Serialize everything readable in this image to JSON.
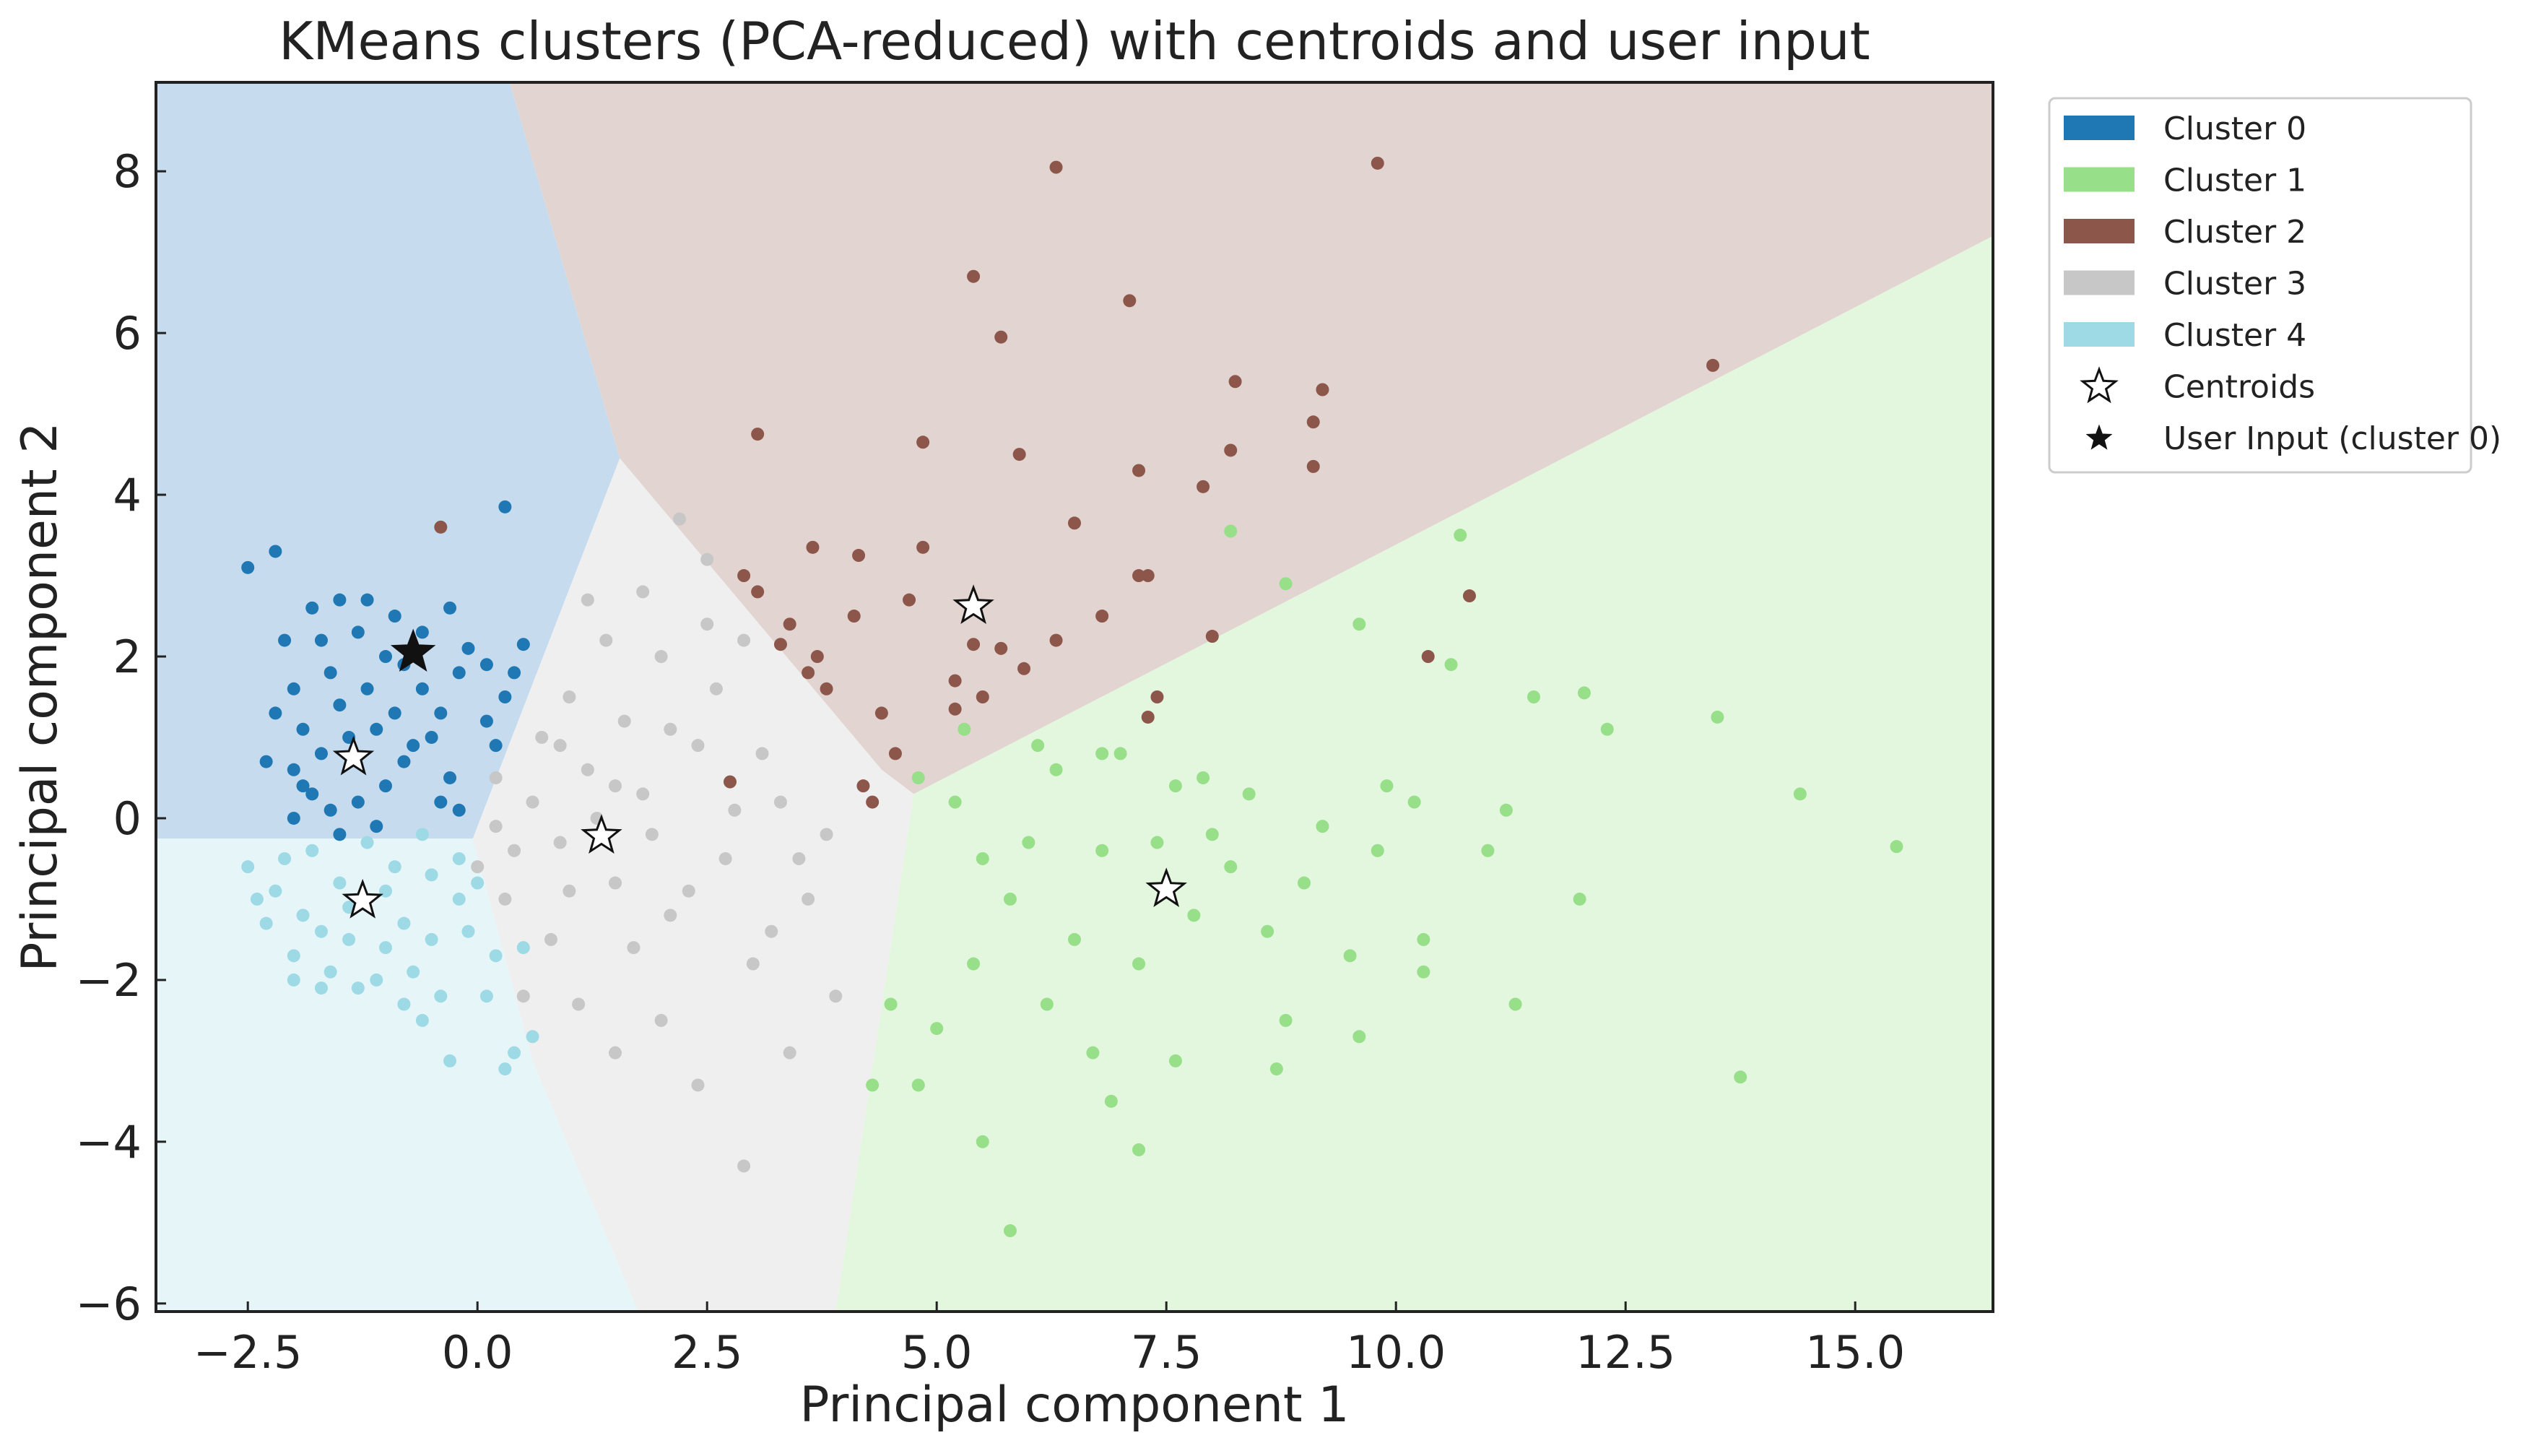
{
  "chart_data": {
    "type": "scatter",
    "title": "KMeans clusters (PCA-reduced) with centroids and user input",
    "xlabel": "Principal component 1",
    "ylabel": "Principal component 2",
    "xlim": [
      -3.5,
      16.5
    ],
    "ylim": [
      -6.1,
      9.1
    ],
    "xticks": [
      -2.5,
      0.0,
      2.5,
      5.0,
      7.5,
      10.0,
      12.5,
      15.0
    ],
    "xtick_labels": [
      "−2.5",
      "0.0",
      "2.5",
      "5.0",
      "7.5",
      "10.0",
      "12.5",
      "15.0"
    ],
    "yticks": [
      -6,
      -4,
      -2,
      0,
      2,
      4,
      6,
      8
    ],
    "ytick_labels": [
      "−6",
      "−4",
      "−2",
      "0",
      "2",
      "4",
      "6",
      "8"
    ],
    "grid": false,
    "legend_position": "outside-top-right",
    "colors": {
      "cluster0": "#1f77b4",
      "cluster1": "#98df8a",
      "cluster2": "#8c564b",
      "cluster3": "#c7c7c7",
      "cluster4": "#9edae5"
    },
    "region_colors": {
      "cluster0": "#c6dcee",
      "cluster1": "#e3f6de",
      "cluster2": "#e2d4d0",
      "cluster3": "#efefef",
      "cluster4": "#e5f5f8"
    },
    "legend": [
      {
        "label": "Cluster 0",
        "kind": "patch",
        "color": "#1f77b4"
      },
      {
        "label": "Cluster 1",
        "kind": "patch",
        "color": "#98df8a"
      },
      {
        "label": "Cluster 2",
        "kind": "patch",
        "color": "#8c564b"
      },
      {
        "label": "Cluster 3",
        "kind": "patch",
        "color": "#c7c7c7"
      },
      {
        "label": "Cluster 4",
        "kind": "patch",
        "color": "#9edae5"
      },
      {
        "label": "Centroids",
        "kind": "open-star"
      },
      {
        "label": "User Input (cluster 0)",
        "kind": "filled-star"
      }
    ],
    "centroids": [
      {
        "cluster": 0,
        "x": -1.35,
        "y": 0.75
      },
      {
        "cluster": 1,
        "x": 7.5,
        "y": -0.88
      },
      {
        "cluster": 2,
        "x": 5.4,
        "y": 2.62
      },
      {
        "cluster": 3,
        "x": 1.35,
        "y": -0.22
      },
      {
        "cluster": 4,
        "x": -1.25,
        "y": -1.02
      }
    ],
    "user_input": {
      "x": -0.7,
      "y": 2.05,
      "cluster": 0
    },
    "series": [
      {
        "name": "Cluster 0",
        "points": [
          [
            -2.5,
            3.1
          ],
          [
            -2.2,
            3.3
          ],
          [
            -1.8,
            2.6
          ],
          [
            -1.5,
            2.7
          ],
          [
            -1.2,
            2.7
          ],
          [
            -0.9,
            2.5
          ],
          [
            -0.6,
            2.3
          ],
          [
            -0.3,
            2.6
          ],
          [
            0.3,
            3.85
          ],
          [
            -0.1,
            2.1
          ],
          [
            0.5,
            2.15
          ],
          [
            0.1,
            1.9
          ],
          [
            0.3,
            1.5
          ],
          [
            0.1,
            1.2
          ],
          [
            -0.2,
            1.8
          ],
          [
            -1.7,
            2.2
          ],
          [
            -2.0,
            1.6
          ],
          [
            -1.9,
            1.1
          ],
          [
            -2.0,
            0.6
          ],
          [
            -1.8,
            0.3
          ],
          [
            -1.6,
            0.1
          ],
          [
            -1.3,
            0.2
          ],
          [
            -1.0,
            0.4
          ],
          [
            -0.8,
            0.7
          ],
          [
            -0.5,
            1.0
          ],
          [
            -0.3,
            0.5
          ],
          [
            -1.5,
            1.4
          ],
          [
            -1.2,
            1.6
          ],
          [
            -0.9,
            1.3
          ],
          [
            -0.6,
            1.6
          ],
          [
            -1.4,
            1.0
          ],
          [
            -1.1,
            1.1
          ],
          [
            -0.7,
            0.9
          ],
          [
            -1.7,
            0.8
          ],
          [
            -2.3,
            0.7
          ],
          [
            -2.0,
            0.0
          ],
          [
            -1.5,
            -0.2
          ],
          [
            -1.1,
            -0.1
          ],
          [
            -0.4,
            0.2
          ],
          [
            0.2,
            0.9
          ],
          [
            -2.1,
            2.2
          ],
          [
            -1.0,
            2.0
          ],
          [
            -0.4,
            1.3
          ],
          [
            0.4,
            1.8
          ],
          [
            -1.6,
            1.8
          ],
          [
            -1.3,
            2.3
          ],
          [
            -0.8,
            1.9
          ],
          [
            -2.2,
            1.3
          ],
          [
            -1.9,
            0.4
          ],
          [
            -0.2,
            0.1
          ]
        ]
      },
      {
        "name": "Cluster 1",
        "points": [
          [
            4.8,
            0.5
          ],
          [
            5.2,
            0.2
          ],
          [
            5.5,
            -0.5
          ],
          [
            5.8,
            -1.0
          ],
          [
            6.0,
            -0.3
          ],
          [
            6.3,
            0.6
          ],
          [
            6.5,
            -1.5
          ],
          [
            6.8,
            -0.4
          ],
          [
            7.0,
            0.8
          ],
          [
            7.2,
            -1.8
          ],
          [
            7.4,
            -0.3
          ],
          [
            7.6,
            0.4
          ],
          [
            7.8,
            -1.2
          ],
          [
            8.0,
            -0.2
          ],
          [
            8.2,
            -0.6
          ],
          [
            8.4,
            0.3
          ],
          [
            8.6,
            -1.4
          ],
          [
            8.8,
            -2.5
          ],
          [
            9.0,
            -0.8
          ],
          [
            9.2,
            -0.1
          ],
          [
            9.5,
            -1.7
          ],
          [
            9.8,
            -0.4
          ],
          [
            10.2,
            0.2
          ],
          [
            10.6,
            1.9
          ],
          [
            11.2,
            0.1
          ],
          [
            11.5,
            1.5
          ],
          [
            12.0,
            -1.0
          ],
          [
            12.3,
            1.1
          ],
          [
            13.5,
            1.25
          ],
          [
            14.4,
            0.3
          ],
          [
            15.45,
            -0.35
          ],
          [
            13.75,
            -3.2
          ],
          [
            11.3,
            -2.3
          ],
          [
            10.3,
            -1.9
          ],
          [
            9.6,
            -2.7
          ],
          [
            8.7,
            -3.1
          ],
          [
            7.6,
            -3.0
          ],
          [
            6.9,
            -3.5
          ],
          [
            7.2,
            -4.1
          ],
          [
            5.5,
            -4.0
          ],
          [
            5.8,
            -5.1
          ],
          [
            4.8,
            -3.3
          ],
          [
            4.3,
            -3.3
          ],
          [
            4.5,
            -2.3
          ],
          [
            5.0,
            -2.6
          ],
          [
            5.4,
            -1.8
          ],
          [
            6.2,
            -2.3
          ],
          [
            6.7,
            -2.9
          ],
          [
            8.2,
            3.55
          ],
          [
            8.8,
            2.9
          ],
          [
            10.7,
            3.5
          ],
          [
            9.6,
            2.4
          ],
          [
            12.05,
            1.55
          ],
          [
            5.3,
            1.1
          ],
          [
            6.1,
            0.9
          ],
          [
            6.8,
            0.8
          ],
          [
            7.9,
            0.5
          ],
          [
            9.9,
            0.4
          ],
          [
            11.0,
            -0.4
          ],
          [
            10.3,
            -1.5
          ]
        ]
      },
      {
        "name": "Cluster 2",
        "points": [
          [
            6.3,
            8.05
          ],
          [
            9.8,
            8.1
          ],
          [
            5.4,
            6.7
          ],
          [
            5.7,
            5.95
          ],
          [
            7.1,
            6.4
          ],
          [
            3.05,
            4.75
          ],
          [
            4.85,
            4.65
          ],
          [
            5.9,
            4.5
          ],
          [
            7.2,
            4.3
          ],
          [
            8.25,
            5.4
          ],
          [
            9.2,
            5.3
          ],
          [
            9.1,
            4.9
          ],
          [
            9.1,
            4.35
          ],
          [
            8.2,
            4.55
          ],
          [
            7.9,
            4.1
          ],
          [
            6.5,
            3.65
          ],
          [
            7.2,
            3.0
          ],
          [
            7.3,
            3.0
          ],
          [
            6.8,
            2.5
          ],
          [
            13.45,
            5.6
          ],
          [
            10.8,
            2.75
          ],
          [
            10.35,
            2.0
          ],
          [
            8.0,
            2.25
          ],
          [
            7.4,
            1.5
          ],
          [
            7.3,
            1.25
          ],
          [
            5.4,
            2.15
          ],
          [
            5.7,
            2.1
          ],
          [
            5.95,
            1.85
          ],
          [
            5.2,
            1.7
          ],
          [
            5.2,
            1.35
          ],
          [
            4.4,
            1.3
          ],
          [
            4.55,
            0.8
          ],
          [
            4.2,
            0.4
          ],
          [
            3.8,
            1.6
          ],
          [
            3.6,
            1.8
          ],
          [
            3.7,
            2.0
          ],
          [
            3.3,
            2.15
          ],
          [
            2.9,
            3.0
          ],
          [
            3.05,
            2.8
          ],
          [
            3.65,
            3.35
          ],
          [
            4.15,
            3.25
          ],
          [
            4.85,
            3.35
          ],
          [
            4.7,
            2.7
          ],
          [
            4.1,
            2.5
          ],
          [
            3.4,
            2.4
          ],
          [
            2.75,
            0.45
          ],
          [
            4.3,
            0.2
          ],
          [
            -0.4,
            3.6
          ],
          [
            5.5,
            1.5
          ],
          [
            6.3,
            2.2
          ]
        ]
      },
      {
        "name": "Cluster 3",
        "points": [
          [
            0.2,
            0.5
          ],
          [
            0.6,
            0.2
          ],
          [
            0.9,
            -0.3
          ],
          [
            1.2,
            0.6
          ],
          [
            1.5,
            -0.8
          ],
          [
            1.8,
            0.3
          ],
          [
            2.1,
            -1.2
          ],
          [
            2.4,
            0.9
          ],
          [
            2.7,
            -0.5
          ],
          [
            3.0,
            -1.8
          ],
          [
            3.3,
            0.2
          ],
          [
            3.6,
            -1.0
          ],
          [
            3.9,
            -2.2
          ],
          [
            1.0,
            1.5
          ],
          [
            1.4,
            2.2
          ],
          [
            1.8,
            2.8
          ],
          [
            2.2,
            3.7
          ],
          [
            2.5,
            3.2
          ],
          [
            2.0,
            2.0
          ],
          [
            1.6,
            1.2
          ],
          [
            0.8,
            -1.5
          ],
          [
            1.1,
            -2.3
          ],
          [
            1.5,
            -2.9
          ],
          [
            2.0,
            -2.5
          ],
          [
            2.4,
            -3.3
          ],
          [
            2.9,
            -4.3
          ],
          [
            3.4,
            -2.9
          ],
          [
            0.5,
            -2.2
          ],
          [
            0.3,
            -1.0
          ],
          [
            0.0,
            -0.6
          ],
          [
            1.3,
            0.0
          ],
          [
            2.6,
            1.6
          ],
          [
            3.1,
            0.8
          ],
          [
            3.5,
            -0.5
          ],
          [
            0.7,
            1.0
          ],
          [
            1.9,
            -0.2
          ],
          [
            2.3,
            -0.9
          ],
          [
            2.8,
            0.1
          ],
          [
            3.8,
            -0.2
          ],
          [
            1.2,
            2.7
          ],
          [
            0.9,
            0.9
          ],
          [
            1.7,
            -1.6
          ],
          [
            2.1,
            1.1
          ],
          [
            0.4,
            -0.4
          ],
          [
            2.5,
            2.4
          ],
          [
            3.2,
            -1.4
          ],
          [
            1.5,
            0.4
          ],
          [
            2.9,
            2.2
          ],
          [
            0.2,
            -0.1
          ],
          [
            1.0,
            -0.9
          ]
        ]
      },
      {
        "name": "Cluster 4",
        "points": [
          [
            -2.5,
            -0.6
          ],
          [
            -2.3,
            -1.3
          ],
          [
            -2.0,
            -1.7
          ],
          [
            -1.7,
            -2.1
          ],
          [
            -1.4,
            -1.5
          ],
          [
            -1.1,
            -2.0
          ],
          [
            -0.8,
            -1.3
          ],
          [
            -0.5,
            -0.7
          ],
          [
            -0.2,
            -1.0
          ],
          [
            0.1,
            -2.2
          ],
          [
            0.4,
            -2.9
          ],
          [
            -0.6,
            -2.5
          ],
          [
            -0.3,
            -3.0
          ],
          [
            0.6,
            -2.7
          ],
          [
            0.5,
            -1.6
          ],
          [
            -1.8,
            -0.4
          ],
          [
            -1.5,
            -0.8
          ],
          [
            -1.2,
            -0.3
          ],
          [
            -0.9,
            -0.6
          ],
          [
            -0.6,
            -0.2
          ],
          [
            -2.2,
            -0.9
          ],
          [
            -1.9,
            -1.2
          ],
          [
            -1.6,
            -1.9
          ],
          [
            -1.3,
            -2.1
          ],
          [
            -1.0,
            -1.6
          ],
          [
            -0.7,
            -1.9
          ],
          [
            -0.4,
            -2.2
          ],
          [
            -0.1,
            -1.4
          ],
          [
            -2.4,
            -1.0
          ],
          [
            -1.0,
            -0.9
          ],
          [
            0.2,
            -1.7
          ],
          [
            0.3,
            -3.1
          ],
          [
            -0.2,
            -0.5
          ],
          [
            -2.0,
            -2.0
          ],
          [
            -0.8,
            -2.3
          ],
          [
            -1.7,
            -1.4
          ],
          [
            -1.4,
            -1.1
          ],
          [
            0.0,
            -0.8
          ],
          [
            -0.5,
            -1.5
          ],
          [
            -2.1,
            -0.5
          ]
        ]
      }
    ]
  }
}
